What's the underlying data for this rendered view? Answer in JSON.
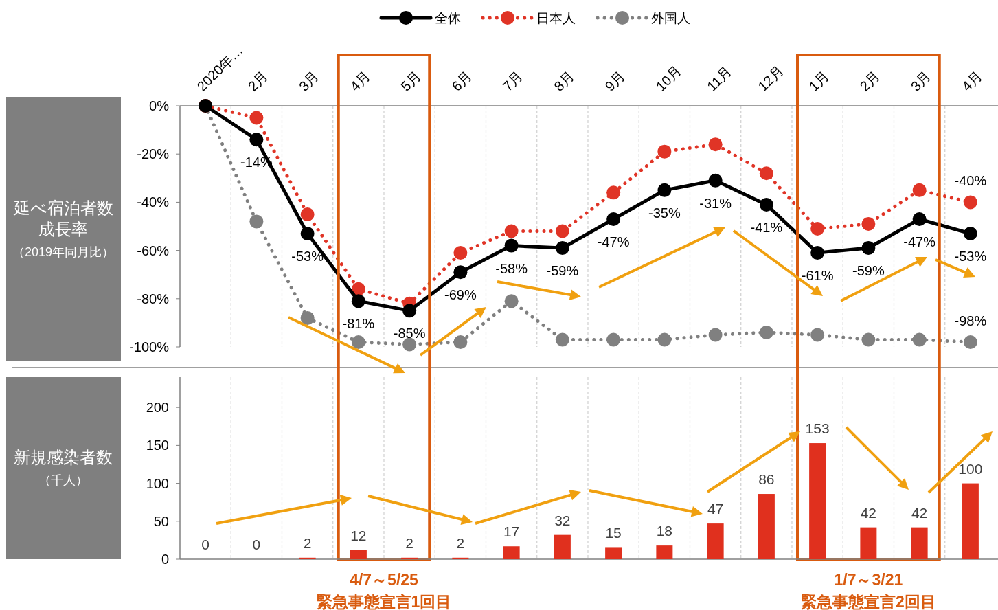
{
  "chart_data": [
    {
      "type": "line",
      "categories": [
        "2020年…",
        "2月",
        "3月",
        "4月",
        "5月",
        "6月",
        "7月",
        "8月",
        "9月",
        "10月",
        "11月",
        "12月",
        "1月",
        "2月",
        "3月",
        "4月"
      ],
      "ylabel": "延べ宿泊者数成長率（2019年同月比）",
      "ylim": [
        -100,
        0
      ],
      "yticks": [
        {
          "value": 0,
          "label": "0%"
        },
        {
          "value": -20,
          "label": "-20%"
        },
        {
          "value": -40,
          "label": "-40%"
        },
        {
          "value": -60,
          "label": "-60%"
        },
        {
          "value": -80,
          "label": "-80%"
        },
        {
          "value": -100,
          "label": "-100%"
        }
      ],
      "marker": "circle",
      "legend": "top",
      "grid": "x",
      "series": [
        {
          "name": "全体",
          "color": "#000000",
          "line_style": "solid",
          "values": [
            0,
            -14,
            -53,
            -81,
            -85,
            -69,
            -58,
            -59,
            -47,
            -35,
            -31,
            -41,
            -61,
            -59,
            -47,
            -53
          ],
          "value_labels": [
            null,
            "-14%",
            "-53%",
            "-81%",
            "-85%",
            "-69%",
            "-58%",
            "-59%",
            "-47%",
            "-35%",
            "-31%",
            "-41%",
            "-61%",
            "-59%",
            "-47%",
            "-53%"
          ]
        },
        {
          "name": "日本人",
          "color": "#e03426",
          "line_style": "dotted",
          "values": [
            0,
            -5,
            -45,
            -76,
            -82,
            -61,
            -52,
            -52,
            -36,
            -19,
            -16,
            -28,
            -51,
            -49,
            -35,
            -40
          ],
          "value_labels": [
            null,
            null,
            null,
            null,
            null,
            null,
            null,
            null,
            null,
            null,
            null,
            null,
            null,
            null,
            null,
            "-40%"
          ]
        },
        {
          "name": "外国人",
          "color": "#808080",
          "line_style": "dotted",
          "values": [
            0,
            -48,
            -88,
            -98,
            -99,
            -98,
            -81,
            -97,
            -97,
            -97,
            -95,
            -94,
            -95,
            -97,
            -97,
            -98
          ],
          "value_labels": [
            null,
            null,
            null,
            null,
            null,
            null,
            null,
            null,
            null,
            null,
            null,
            null,
            null,
            null,
            null,
            "-98%"
          ]
        }
      ]
    },
    {
      "type": "bar",
      "categories": [
        null,
        null,
        null,
        null,
        null,
        null,
        null,
        null,
        null,
        null,
        null,
        null,
        null,
        null,
        null,
        null
      ],
      "ylabel": "新規感染者数（千人）",
      "values": [
        0,
        0,
        2,
        12,
        2,
        2,
        17,
        32,
        15,
        18,
        47,
        86,
        153,
        42,
        42,
        100
      ],
      "color": "#e0301e",
      "data_labels": true,
      "ylim": [
        0,
        240
      ],
      "yticks": [
        0,
        50,
        100,
        150,
        200
      ],
      "tick_labels": "y",
      "grid": "x",
      "annotations": [
        "4/7～5/25\n緊急事態宣言1回目",
        "1/7～3/21\n緊急事態宣言2回目"
      ]
    }
  ]
}
